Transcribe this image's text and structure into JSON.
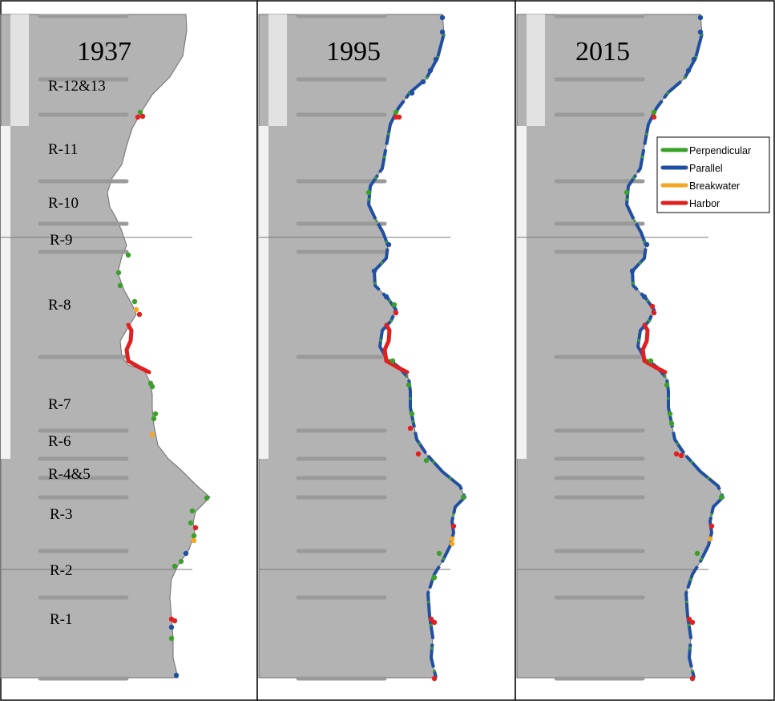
{
  "panels": [
    {
      "year": "1937"
    },
    {
      "year": "1995"
    },
    {
      "year": "2015"
    }
  ],
  "regions": [
    "R-12&13",
    "R-11",
    "R-10",
    "R-9",
    "R-8",
    "R-7",
    "R-6",
    "R-4&5",
    "R-3",
    "R-2",
    "R-1"
  ],
  "legend": {
    "items": [
      {
        "label": "Perpendicular",
        "color": "#3aa02a"
      },
      {
        "label": "Parallel",
        "color": "#1f4fa0"
      },
      {
        "label": "Breakwater",
        "color": "#f5a623"
      },
      {
        "label": "Harbor",
        "color": "#e02020"
      }
    ]
  },
  "colors": {
    "land": "#b3b3b3",
    "inland_strip": "#e6e6e6",
    "transect": "#9a9a9a",
    "perpendicular": "#3aa02a",
    "parallel": "#1f4fa0",
    "breakwater": "#f5a623",
    "harbor": "#e02020"
  }
}
